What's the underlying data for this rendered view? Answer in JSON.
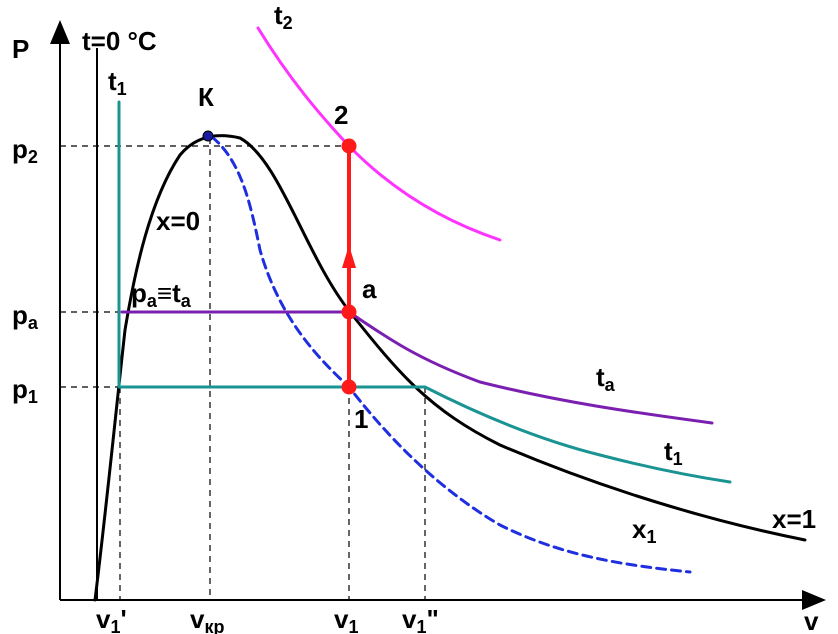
{
  "colors": {
    "axis": "#000000",
    "saturation_curve": "#000000",
    "isotherm_t1": "#1a9393",
    "isotherm_ta": "#7a1fb0",
    "isotherm_t2": "#ff33ff",
    "quality_x1": "#1f2fe0",
    "process": "#ff1a1a",
    "critical_point": "#1a1aa0",
    "guide": "#000000"
  },
  "labels": {
    "y_axis": "P",
    "x_axis": "v",
    "t_zero": "t=0 °C",
    "t1_left": "t",
    "t1_left_sub": "1",
    "t2": "t",
    "t2_sub": "2",
    "critical": "К",
    "x0": "x=0",
    "pa_ta": "p",
    "pa_ta_sub": "a",
    "pa_ta_mid": "≡t",
    "pa_ta_sub2": "a",
    "ta": "t",
    "ta_sub": "a",
    "t1_right": "t",
    "t1_right_sub": "1",
    "x1": "x",
    "x1_sub": "1",
    "x_one": "x=1",
    "point_2": "2",
    "point_a": "a",
    "point_1": "1"
  },
  "y_ticks": [
    {
      "text": "p",
      "sub": "2"
    },
    {
      "text": "p",
      "sub": "a"
    },
    {
      "text": "p",
      "sub": "1"
    }
  ],
  "x_ticks": [
    {
      "text": "v",
      "sub": "1",
      "suffix": "'"
    },
    {
      "text": "v",
      "sub": "кр",
      "suffix": ""
    },
    {
      "text": "v",
      "sub": "1",
      "suffix": ""
    },
    {
      "text": "v",
      "sub": "1",
      "suffix": "\""
    }
  ]
}
